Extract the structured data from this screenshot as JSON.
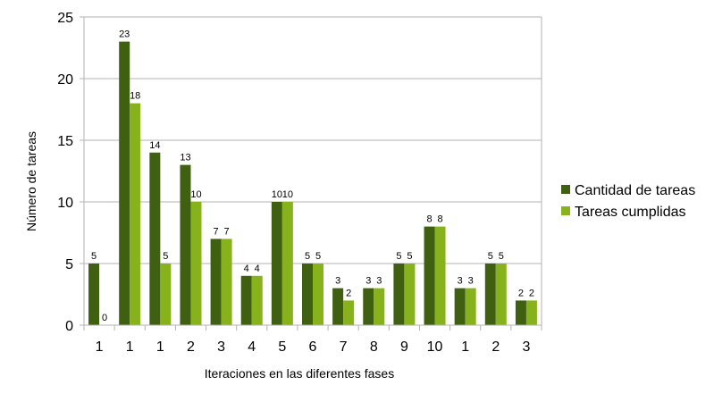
{
  "chart_data": {
    "type": "bar",
    "categories": [
      "1",
      "1",
      "1",
      "2",
      "3",
      "4",
      "5",
      "6",
      "7",
      "8",
      "9",
      "10",
      "1",
      "2",
      "3"
    ],
    "series": [
      {
        "name": "Cantidad de tareas",
        "color": "#3f6010",
        "values": [
          5,
          23,
          14,
          13,
          7,
          4,
          10,
          5,
          3,
          3,
          5,
          8,
          3,
          5,
          2
        ]
      },
      {
        "name": "Tareas cumplidas",
        "color": "#88b21c",
        "values": [
          0,
          18,
          5,
          10,
          7,
          4,
          10,
          5,
          2,
          3,
          5,
          8,
          3,
          5,
          2
        ]
      }
    ],
    "title": "",
    "xlabel": "Iteraciones en las diferentes fases",
    "ylabel": "Número de tareas",
    "ylim": [
      0,
      25
    ],
    "yticks": [
      0,
      5,
      10,
      15,
      20,
      25
    ],
    "grid": true,
    "legend_position": "right",
    "data_labels": true
  }
}
